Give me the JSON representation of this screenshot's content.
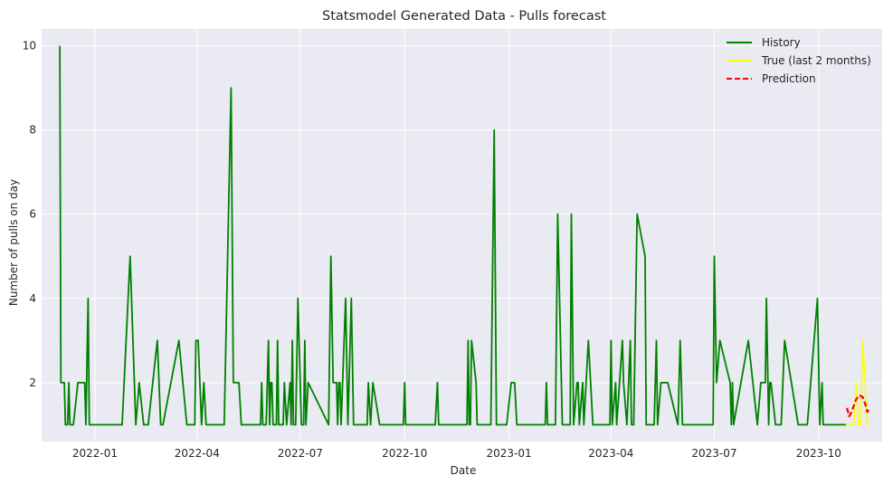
{
  "chart_data": {
    "type": "line",
    "title": "Statsmodel Generated Data - Pulls forecast",
    "xlabel": "Date",
    "ylabel": "Number of pulls on day",
    "xlim": [
      "2021-11-15",
      "2023-11-26"
    ],
    "ylim": [
      0.6,
      10.4
    ],
    "x_ticks": [
      "2022-01",
      "2022-04",
      "2022-07",
      "2022-10",
      "2023-01",
      "2023-04",
      "2023-07",
      "2023-10"
    ],
    "x_tick_dates": [
      "2022-01-01",
      "2022-04-01",
      "2022-07-01",
      "2022-10-01",
      "2023-01-01",
      "2023-04-01",
      "2023-07-01",
      "2023-10-01"
    ],
    "y_ticks": [
      2,
      4,
      6,
      8,
      10
    ],
    "grid": true,
    "legend_position": "top-right",
    "background": "#EAEAF2",
    "series": [
      {
        "name": "History",
        "color": "#008000",
        "style": "solid",
        "points": [
          [
            "2021-12-01",
            10
          ],
          [
            "2021-12-02",
            2
          ],
          [
            "2021-12-05",
            2
          ],
          [
            "2021-12-06",
            1
          ],
          [
            "2021-12-08",
            1
          ],
          [
            "2021-12-09",
            2
          ],
          [
            "2021-12-10",
            1
          ],
          [
            "2021-12-13",
            1
          ],
          [
            "2021-12-17",
            2
          ],
          [
            "2021-12-23",
            2
          ],
          [
            "2021-12-24",
            1
          ],
          [
            "2021-12-26",
            4
          ],
          [
            "2021-12-27",
            1
          ],
          [
            "2022-01-25",
            1
          ],
          [
            "2022-02-01",
            5
          ],
          [
            "2022-02-06",
            1
          ],
          [
            "2022-02-09",
            2
          ],
          [
            "2022-02-13",
            1
          ],
          [
            "2022-02-17",
            1
          ],
          [
            "2022-02-25",
            3
          ],
          [
            "2022-02-28",
            1
          ],
          [
            "2022-03-02",
            1
          ],
          [
            "2022-03-16",
            3
          ],
          [
            "2022-03-23",
            1
          ],
          [
            "2022-03-30",
            1
          ],
          [
            "2022-03-31",
            3
          ],
          [
            "2022-04-02",
            3
          ],
          [
            "2022-04-05",
            1
          ],
          [
            "2022-04-07",
            2
          ],
          [
            "2022-04-09",
            1
          ],
          [
            "2022-04-25",
            1
          ],
          [
            "2022-05-01",
            9
          ],
          [
            "2022-05-03",
            2
          ],
          [
            "2022-05-08",
            2
          ],
          [
            "2022-05-10",
            1
          ],
          [
            "2022-05-27",
            1
          ],
          [
            "2022-05-28",
            2
          ],
          [
            "2022-05-29",
            1
          ],
          [
            "2022-06-01",
            1
          ],
          [
            "2022-06-03",
            3
          ],
          [
            "2022-06-04",
            1
          ],
          [
            "2022-06-05",
            2
          ],
          [
            "2022-06-06",
            2
          ],
          [
            "2022-06-07",
            1
          ],
          [
            "2022-06-10",
            1
          ],
          [
            "2022-06-11",
            3
          ],
          [
            "2022-06-12",
            1
          ],
          [
            "2022-06-16",
            1
          ],
          [
            "2022-06-17",
            2
          ],
          [
            "2022-06-19",
            1
          ],
          [
            "2022-06-22",
            2
          ],
          [
            "2022-06-23",
            1
          ],
          [
            "2022-06-24",
            3
          ],
          [
            "2022-06-25",
            1
          ],
          [
            "2022-06-27",
            1
          ],
          [
            "2022-06-29",
            4
          ],
          [
            "2022-07-02",
            1
          ],
          [
            "2022-07-04",
            1
          ],
          [
            "2022-07-05",
            3
          ],
          [
            "2022-07-06",
            1
          ],
          [
            "2022-07-08",
            2
          ],
          [
            "2022-07-26",
            1
          ],
          [
            "2022-07-28",
            5
          ],
          [
            "2022-07-30",
            2
          ],
          [
            "2022-08-02",
            2
          ],
          [
            "2022-08-03",
            1
          ],
          [
            "2022-08-04",
            2
          ],
          [
            "2022-08-05",
            2
          ],
          [
            "2022-08-06",
            1
          ],
          [
            "2022-08-10",
            4
          ],
          [
            "2022-08-12",
            1
          ],
          [
            "2022-08-15",
            4
          ],
          [
            "2022-08-17",
            1
          ],
          [
            "2022-08-29",
            1
          ],
          [
            "2022-08-30",
            2
          ],
          [
            "2022-09-01",
            1
          ],
          [
            "2022-09-03",
            2
          ],
          [
            "2022-09-09",
            1
          ],
          [
            "2022-09-30",
            1
          ],
          [
            "2022-10-01",
            2
          ],
          [
            "2022-10-02",
            1
          ],
          [
            "2022-10-28",
            1
          ],
          [
            "2022-10-30",
            2
          ],
          [
            "2022-10-31",
            1
          ],
          [
            "2022-11-25",
            1
          ],
          [
            "2022-11-26",
            3
          ],
          [
            "2022-11-27",
            1
          ],
          [
            "2022-11-28",
            1
          ],
          [
            "2022-11-29",
            3
          ],
          [
            "2022-12-03",
            2
          ],
          [
            "2022-12-04",
            1
          ],
          [
            "2022-12-16",
            1
          ],
          [
            "2022-12-19",
            8
          ],
          [
            "2022-12-21",
            1
          ],
          [
            "2022-12-30",
            1
          ],
          [
            "2023-01-03",
            2
          ],
          [
            "2023-01-06",
            2
          ],
          [
            "2023-01-08",
            1
          ],
          [
            "2023-02-02",
            1
          ],
          [
            "2023-02-03",
            2
          ],
          [
            "2023-02-04",
            1
          ],
          [
            "2023-02-11",
            1
          ],
          [
            "2023-02-13",
            6
          ],
          [
            "2023-02-17",
            1
          ],
          [
            "2023-02-24",
            1
          ],
          [
            "2023-02-25",
            6
          ],
          [
            "2023-02-27",
            1
          ],
          [
            "2023-03-02",
            2
          ],
          [
            "2023-03-03",
            2
          ],
          [
            "2023-03-04",
            1
          ],
          [
            "2023-03-07",
            2
          ],
          [
            "2023-03-08",
            1
          ],
          [
            "2023-03-12",
            3
          ],
          [
            "2023-03-14",
            2
          ],
          [
            "2023-03-16",
            1
          ],
          [
            "2023-03-31",
            1
          ],
          [
            "2023-04-01",
            3
          ],
          [
            "2023-04-02",
            1
          ],
          [
            "2023-04-05",
            2
          ],
          [
            "2023-04-06",
            1
          ],
          [
            "2023-04-11",
            3
          ],
          [
            "2023-04-12",
            2
          ],
          [
            "2023-04-15",
            1
          ],
          [
            "2023-04-18",
            3
          ],
          [
            "2023-04-19",
            1
          ],
          [
            "2023-04-21",
            1
          ],
          [
            "2023-04-24",
            6
          ],
          [
            "2023-05-01",
            5
          ],
          [
            "2023-05-02",
            1
          ],
          [
            "2023-05-09",
            1
          ],
          [
            "2023-05-11",
            3
          ],
          [
            "2023-05-12",
            1
          ],
          [
            "2023-05-15",
            2
          ],
          [
            "2023-05-21",
            2
          ],
          [
            "2023-05-30",
            1
          ],
          [
            "2023-06-01",
            3
          ],
          [
            "2023-06-03",
            1
          ],
          [
            "2023-06-30",
            1
          ],
          [
            "2023-07-01",
            5
          ],
          [
            "2023-07-03",
            2
          ],
          [
            "2023-07-06",
            3
          ],
          [
            "2023-07-15",
            2
          ],
          [
            "2023-07-16",
            1
          ],
          [
            "2023-07-17",
            2
          ],
          [
            "2023-07-18",
            1
          ],
          [
            "2023-07-31",
            3
          ],
          [
            "2023-08-08",
            1
          ],
          [
            "2023-08-11",
            2
          ],
          [
            "2023-08-15",
            2
          ],
          [
            "2023-08-16",
            4
          ],
          [
            "2023-08-18",
            1
          ],
          [
            "2023-08-19",
            2
          ],
          [
            "2023-08-20",
            2
          ],
          [
            "2023-08-24",
            1
          ],
          [
            "2023-08-29",
            1
          ],
          [
            "2023-09-01",
            3
          ],
          [
            "2023-09-13",
            1
          ],
          [
            "2023-09-21",
            1
          ],
          [
            "2023-09-30",
            4
          ],
          [
            "2023-10-02",
            1
          ],
          [
            "2023-10-04",
            2
          ],
          [
            "2023-10-05",
            1
          ],
          [
            "2023-10-25",
            1
          ]
        ]
      },
      {
        "name": "True (last 2 months)",
        "color": "#FFFF00",
        "style": "solid",
        "points": [
          [
            "2023-10-25",
            1
          ],
          [
            "2023-11-01",
            1
          ],
          [
            "2023-11-03",
            2
          ],
          [
            "2023-11-05",
            1
          ],
          [
            "2023-11-07",
            1
          ],
          [
            "2023-11-09",
            3
          ],
          [
            "2023-11-11",
            2
          ],
          [
            "2023-11-13",
            1
          ],
          [
            "2023-11-15",
            1
          ]
        ]
      },
      {
        "name": "Prediction",
        "color": "#FF0000",
        "style": "dashed",
        "points": [
          [
            "2023-10-26",
            1.4
          ],
          [
            "2023-10-28",
            1.2
          ],
          [
            "2023-10-30",
            1.3
          ],
          [
            "2023-11-01",
            1.45
          ],
          [
            "2023-11-03",
            1.6
          ],
          [
            "2023-11-06",
            1.7
          ],
          [
            "2023-11-09",
            1.65
          ],
          [
            "2023-11-11",
            1.5
          ],
          [
            "2023-11-13",
            1.3
          ],
          [
            "2023-11-15",
            1.4
          ]
        ]
      }
    ]
  }
}
